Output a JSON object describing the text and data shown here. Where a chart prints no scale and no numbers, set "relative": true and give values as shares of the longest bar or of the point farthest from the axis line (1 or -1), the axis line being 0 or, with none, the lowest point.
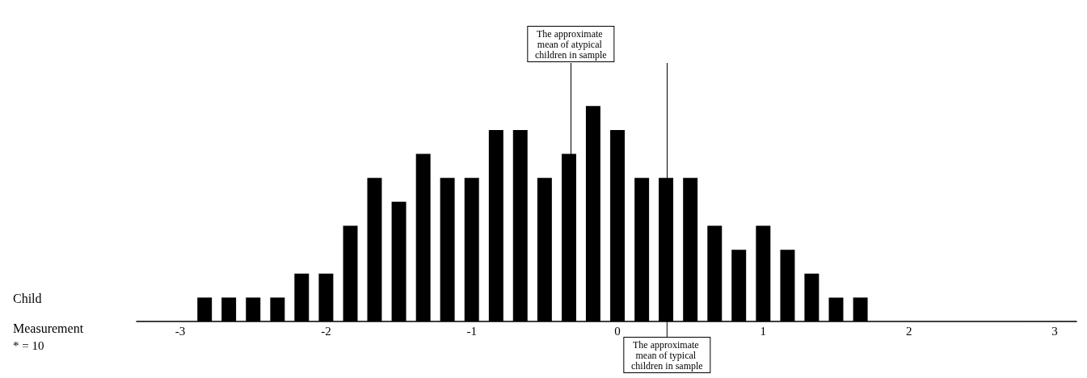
{
  "chart_data": {
    "type": "bar",
    "xlabel": "Child Measurement",
    "color": "#000000",
    "relative": true,
    "x": [
      -2.833,
      -2.667,
      -2.5,
      -2.333,
      -2.167,
      -2,
      -1.833,
      -1.667,
      -1.5,
      -1.333,
      -1.167,
      -1,
      -0.833,
      -0.667,
      -0.5,
      -0.333,
      -0.167,
      0,
      0.167,
      0.333,
      0.5,
      0.667,
      0.833,
      1,
      1.167,
      1.333,
      1.5,
      1.667
    ],
    "values": [
      0.111,
      0.111,
      0.111,
      0.111,
      0.222,
      0.222,
      0.444,
      0.667,
      0.556,
      0.778,
      0.667,
      0.667,
      0.889,
      0.889,
      0.667,
      0.778,
      1,
      0.889,
      0.667,
      0.667,
      0.667,
      0.444,
      0.333,
      0.444,
      0.333,
      0.222,
      0.111,
      0.111
    ],
    "xlim": [
      -3.3,
      3.15
    ],
    "xticks": [
      -3,
      -2,
      -1,
      0,
      1,
      2,
      3
    ],
    "ref_lines": [
      {
        "axis": "x",
        "value": -0.32,
        "label": "The approximate mean of atypical children in sample"
      },
      {
        "axis": "x",
        "value": 0.34,
        "label": "The approximate mean of typical children in sample"
      }
    ],
    "annotations": [
      "* = 10"
    ],
    "grid": false
  }
}
